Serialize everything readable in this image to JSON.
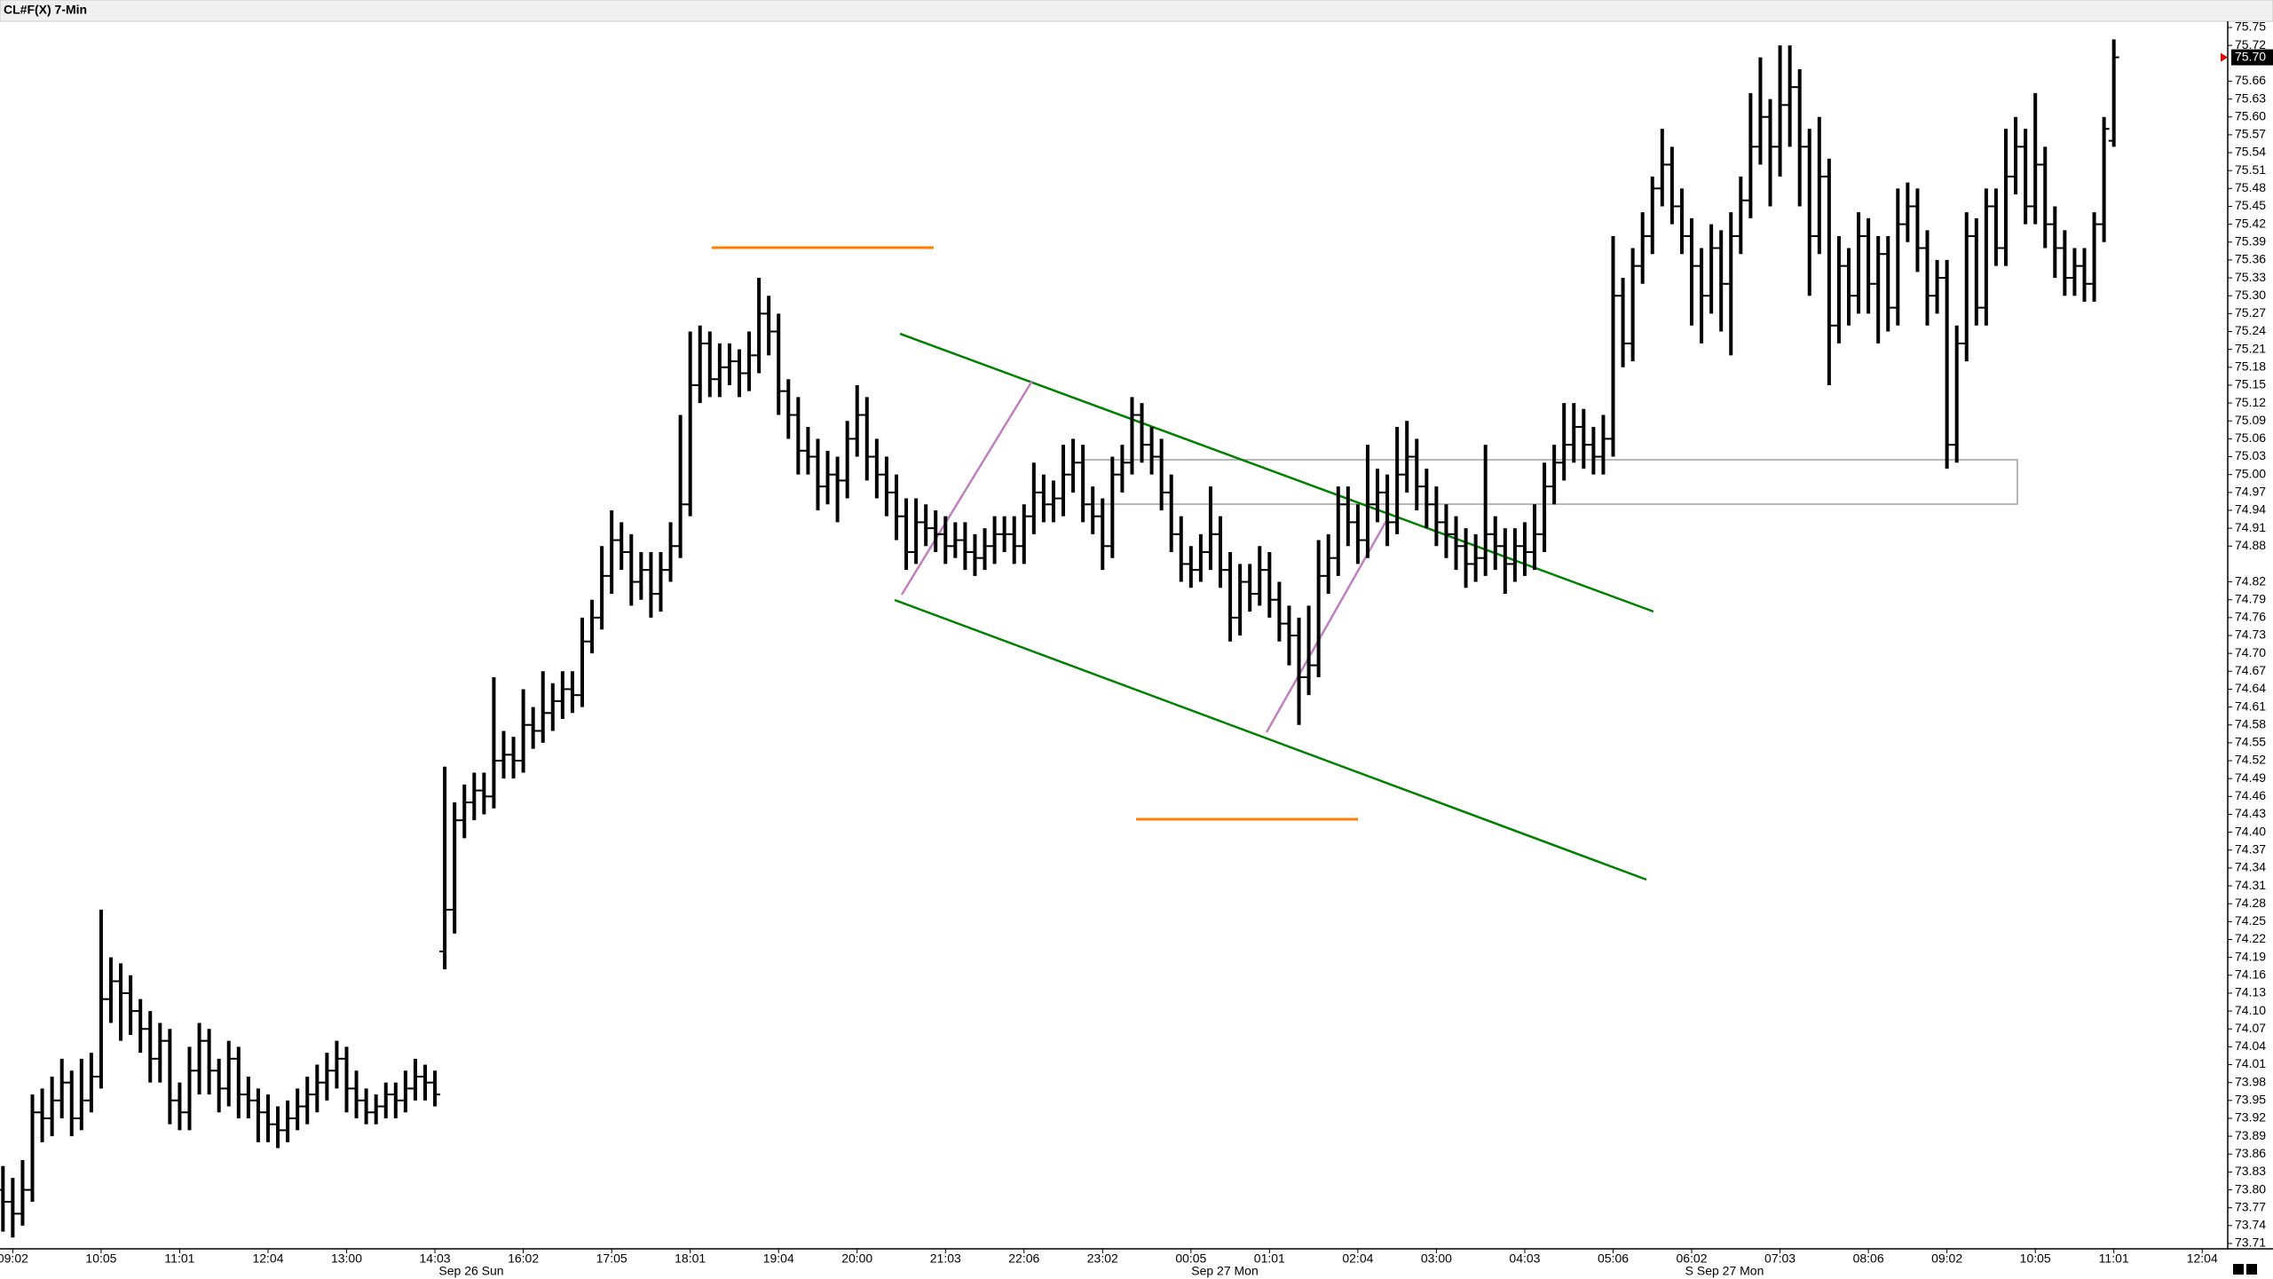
{
  "chart_data": {
    "type": "ohlc",
    "title": "CL#F(X) 7-Min",
    "color": "#000000",
    "xlim": [
      -0.3,
      226.6
    ],
    "ylim": [
      73.71,
      75.75
    ],
    "xticks": [
      {
        "value": 1,
        "label": "09:02"
      },
      {
        "value": 10,
        "label": "10:05"
      },
      {
        "value": 18,
        "label": "11:01"
      },
      {
        "value": 27,
        "label": "12:04"
      },
      {
        "value": 35,
        "label": "13:00"
      },
      {
        "value": 44,
        "label": "14:03"
      },
      {
        "value": 53,
        "label": "16:02"
      },
      {
        "value": 62,
        "label": "17:05"
      },
      {
        "value": 70,
        "label": "18:01"
      },
      {
        "value": 79,
        "label": "19:04"
      },
      {
        "value": 87,
        "label": "20:00"
      },
      {
        "value": 96,
        "label": "21:03"
      },
      {
        "value": 104,
        "label": "22:06"
      },
      {
        "value": 112,
        "label": "23:02"
      },
      {
        "value": 121,
        "label": "00:05"
      },
      {
        "value": 129,
        "label": "01:01"
      },
      {
        "value": 138,
        "label": "02:04"
      },
      {
        "value": 146,
        "label": "03:00"
      },
      {
        "value": 155,
        "label": "04:03"
      },
      {
        "value": 164,
        "label": "05:06"
      },
      {
        "value": 172,
        "label": "06:02"
      },
      {
        "value": 181,
        "label": "07:03"
      },
      {
        "value": 190,
        "label": "08:06"
      },
      {
        "value": 198,
        "label": "09:02"
      },
      {
        "value": 207,
        "label": "10:05"
      },
      {
        "value": 215,
        "label": "11:01"
      },
      {
        "value": 224,
        "label": "12:04"
      }
    ],
    "date_labels": [
      "Sep 26 Sun",
      "Sep 27 Mon",
      "S Sep 27 Mon"
    ],
    "yticks": [
      75.75,
      75.72,
      75.66,
      75.63,
      {
        "value": 75.6,
        "label": "75.60"
      },
      75.57,
      75.54,
      75.51,
      75.48,
      75.45,
      75.42,
      75.39,
      75.36,
      75.33,
      {
        "value": 75.3,
        "label": "75.30"
      },
      75.27,
      75.24,
      75.21,
      75.18,
      75.15,
      75.12,
      75.09,
      75.06,
      75.03,
      {
        "value": 75,
        "label": "75.00"
      },
      74.97,
      74.94,
      74.91,
      74.88,
      74.82,
      74.79,
      74.76,
      74.73,
      {
        "value": 74.7,
        "label": "74.70"
      },
      74.67,
      74.64,
      74.61,
      74.58,
      74.55,
      74.52,
      74.49,
      74.46,
      74.43,
      {
        "value": 74.4,
        "label": "74.40"
      },
      74.37,
      74.34,
      74.31,
      74.28,
      74.25,
      74.22,
      74.19,
      74.16,
      74.13,
      {
        "value": 74.1,
        "label": "74.10"
      },
      74.07,
      74.04,
      74.01,
      73.98,
      73.95,
      73.92,
      73.89,
      73.86,
      73.83,
      {
        "value": 73.8,
        "label": "73.80"
      },
      73.77,
      73.74,
      73.71
    ],
    "last_price": {
      "value": 75.7,
      "label": "75.70"
    },
    "ohlc": [
      [
        73.8,
        73.84,
        73.73,
        73.78
      ],
      [
        73.78,
        73.82,
        73.72,
        73.76
      ],
      [
        73.76,
        73.85,
        73.74,
        73.8
      ],
      [
        73.8,
        73.96,
        73.78,
        73.93
      ],
      [
        73.93,
        73.97,
        73.88,
        73.92
      ],
      [
        73.92,
        73.99,
        73.89,
        73.95
      ],
      [
        73.95,
        74.02,
        73.92,
        73.98
      ],
      [
        73.98,
        74.0,
        73.89,
        73.92
      ],
      [
        73.92,
        74.02,
        73.9,
        73.95
      ],
      [
        73.95,
        74.03,
        73.93,
        73.99
      ],
      [
        73.99,
        74.27,
        73.97,
        74.12
      ],
      [
        74.12,
        74.19,
        74.08,
        74.15
      ],
      [
        74.15,
        74.18,
        74.05,
        74.13
      ],
      [
        74.13,
        74.16,
        74.06,
        74.1
      ],
      [
        74.1,
        74.12,
        74.03,
        74.07
      ],
      [
        74.07,
        74.1,
        73.98,
        74.02
      ],
      [
        74.02,
        74.08,
        73.98,
        74.05
      ],
      [
        74.05,
        74.07,
        73.91,
        73.95
      ],
      [
        73.95,
        73.98,
        73.9,
        73.93
      ],
      [
        73.93,
        74.04,
        73.9,
        74.0
      ],
      [
        74.0,
        74.08,
        73.96,
        74.05
      ],
      [
        74.05,
        74.07,
        73.96,
        74.0
      ],
      [
        74.0,
        74.02,
        73.93,
        73.97
      ],
      [
        73.97,
        74.05,
        73.94,
        74.02
      ],
      [
        74.02,
        74.04,
        73.92,
        73.96
      ],
      [
        73.96,
        73.99,
        73.92,
        73.95
      ],
      [
        73.95,
        73.97,
        73.88,
        73.93
      ],
      [
        73.93,
        73.96,
        73.88,
        73.91
      ],
      [
        73.91,
        73.94,
        73.87,
        73.9
      ],
      [
        73.9,
        73.95,
        73.88,
        73.92
      ],
      [
        73.92,
        73.97,
        73.9,
        73.94
      ],
      [
        73.94,
        73.99,
        73.91,
        73.96
      ],
      [
        73.96,
        74.01,
        73.93,
        73.98
      ],
      [
        73.98,
        74.03,
        73.95,
        74.0
      ],
      [
        74.0,
        74.05,
        73.97,
        74.02
      ],
      [
        74.02,
        74.04,
        73.93,
        73.97
      ],
      [
        73.97,
        74.0,
        73.92,
        73.95
      ],
      [
        73.95,
        73.97,
        73.91,
        73.93
      ],
      [
        73.93,
        73.96,
        73.91,
        73.94
      ],
      [
        73.94,
        73.98,
        73.92,
        73.96
      ],
      [
        73.96,
        73.98,
        73.92,
        73.95
      ],
      [
        73.95,
        74.0,
        73.93,
        73.97
      ],
      [
        73.97,
        74.02,
        73.95,
        73.99
      ],
      [
        73.99,
        74.01,
        73.95,
        73.98
      ],
      [
        73.98,
        74.0,
        73.94,
        73.96
      ],
      [
        74.2,
        74.51,
        74.17,
        74.27
      ],
      [
        74.27,
        74.45,
        74.23,
        74.42
      ],
      [
        74.42,
        74.48,
        74.39,
        74.45
      ],
      [
        74.45,
        74.5,
        74.42,
        74.47
      ],
      [
        74.47,
        74.5,
        74.43,
        74.46
      ],
      [
        74.46,
        74.66,
        74.44,
        74.52
      ],
      [
        74.52,
        74.57,
        74.49,
        74.53
      ],
      [
        74.53,
        74.56,
        74.49,
        74.52
      ],
      [
        74.52,
        74.64,
        74.5,
        74.58
      ],
      [
        74.58,
        74.61,
        74.54,
        74.57
      ],
      [
        74.57,
        74.67,
        74.55,
        74.6
      ],
      [
        74.6,
        74.65,
        74.57,
        74.62
      ],
      [
        74.62,
        74.67,
        74.59,
        74.64
      ],
      [
        74.64,
        74.67,
        74.6,
        74.63
      ],
      [
        74.63,
        74.76,
        74.61,
        74.72
      ],
      [
        74.72,
        74.79,
        74.7,
        74.76
      ],
      [
        74.76,
        74.88,
        74.74,
        74.83
      ],
      [
        74.83,
        74.94,
        74.8,
        74.89
      ],
      [
        74.89,
        74.92,
        74.84,
        74.87
      ],
      [
        74.87,
        74.9,
        74.78,
        74.82
      ],
      [
        74.82,
        74.87,
        74.79,
        74.84
      ],
      [
        74.84,
        74.87,
        74.76,
        74.8
      ],
      [
        74.8,
        74.87,
        74.77,
        74.84
      ],
      [
        74.84,
        74.92,
        74.82,
        74.88
      ],
      [
        74.88,
        75.1,
        74.86,
        74.95
      ],
      [
        74.95,
        75.24,
        74.93,
        75.15
      ],
      [
        75.15,
        75.25,
        75.12,
        75.22
      ],
      [
        75.22,
        75.24,
        75.13,
        75.16
      ],
      [
        75.16,
        75.22,
        75.13,
        75.18
      ],
      [
        75.18,
        75.22,
        75.15,
        75.19
      ],
      [
        75.19,
        75.21,
        75.13,
        75.17
      ],
      [
        75.17,
        75.24,
        75.14,
        75.2
      ],
      [
        75.2,
        75.33,
        75.17,
        75.27
      ],
      [
        75.27,
        75.3,
        75.2,
        75.24
      ],
      [
        75.24,
        75.27,
        75.1,
        75.14
      ],
      [
        75.14,
        75.16,
        75.06,
        75.1
      ],
      [
        75.1,
        75.13,
        75.0,
        75.04
      ],
      [
        75.04,
        75.08,
        75.0,
        75.03
      ],
      [
        75.03,
        75.06,
        74.94,
        74.98
      ],
      [
        74.98,
        75.04,
        74.95,
        75.0
      ],
      [
        75.0,
        75.03,
        74.92,
        74.99
      ],
      [
        74.99,
        75.09,
        74.96,
        75.06
      ],
      [
        75.06,
        75.15,
        75.03,
        75.1
      ],
      [
        75.1,
        75.13,
        74.99,
        75.03
      ],
      [
        75.03,
        75.06,
        74.96,
        75.0
      ],
      [
        75.0,
        75.03,
        74.93,
        74.97
      ],
      [
        74.97,
        75.0,
        74.89,
        74.93
      ],
      [
        74.93,
        74.96,
        74.84,
        74.87
      ],
      [
        74.87,
        74.96,
        74.85,
        74.92
      ],
      [
        74.92,
        74.95,
        74.88,
        74.91
      ],
      [
        74.91,
        74.94,
        74.87,
        74.9
      ],
      [
        74.9,
        74.93,
        74.85,
        74.88
      ],
      [
        74.88,
        74.92,
        74.86,
        74.89
      ],
      [
        74.89,
        74.92,
        74.84,
        74.87
      ],
      [
        74.87,
        74.9,
        74.83,
        74.86
      ],
      [
        74.86,
        74.91,
        74.84,
        74.88
      ],
      [
        74.88,
        74.93,
        74.85,
        74.9
      ],
      [
        74.9,
        74.93,
        74.87,
        74.9
      ],
      [
        74.9,
        74.93,
        74.85,
        74.88
      ],
      [
        74.88,
        74.95,
        74.85,
        74.93
      ],
      [
        74.93,
        75.02,
        74.9,
        74.97
      ],
      [
        74.97,
        75.0,
        74.92,
        74.95
      ],
      [
        74.95,
        74.99,
        74.92,
        74.96
      ],
      [
        74.96,
        75.05,
        74.93,
        75.0
      ],
      [
        75.0,
        75.06,
        74.97,
        75.02
      ],
      [
        75.02,
        75.05,
        74.92,
        74.95
      ],
      [
        74.95,
        74.98,
        74.9,
        74.93
      ],
      [
        74.93,
        74.96,
        74.84,
        74.88
      ],
      [
        74.88,
        75.03,
        74.86,
        75.0
      ],
      [
        75.0,
        75.05,
        74.97,
        75.02
      ],
      [
        75.02,
        75.13,
        75.0,
        75.1
      ],
      [
        75.1,
        75.12,
        75.02,
        75.05
      ],
      [
        75.05,
        75.08,
        75.0,
        75.03
      ],
      [
        75.03,
        75.06,
        74.94,
        74.97
      ],
      [
        74.97,
        75.0,
        74.87,
        74.9
      ],
      [
        74.9,
        74.93,
        74.82,
        74.85
      ],
      [
        74.85,
        74.88,
        74.81,
        74.84
      ],
      [
        74.84,
        74.9,
        74.82,
        74.87
      ],
      [
        74.87,
        74.98,
        74.84,
        74.9
      ],
      [
        74.9,
        74.93,
        74.81,
        74.84
      ],
      [
        74.84,
        74.87,
        74.72,
        74.76
      ],
      [
        74.76,
        74.85,
        74.73,
        74.82
      ],
      [
        74.82,
        74.85,
        74.77,
        74.8
      ],
      [
        74.8,
        74.88,
        74.78,
        74.84
      ],
      [
        74.84,
        74.87,
        74.76,
        74.79
      ],
      [
        74.79,
        74.82,
        74.72,
        74.75
      ],
      [
        74.75,
        74.78,
        74.68,
        74.73
      ],
      [
        74.73,
        74.76,
        74.58,
        74.66
      ],
      [
        74.66,
        74.78,
        74.63,
        74.68
      ],
      [
        74.68,
        74.89,
        74.66,
        74.83
      ],
      [
        74.83,
        74.9,
        74.8,
        74.86
      ],
      [
        74.86,
        74.98,
        74.83,
        74.95
      ],
      [
        74.95,
        74.98,
        74.88,
        74.92
      ],
      [
        74.92,
        74.95,
        74.85,
        74.89
      ],
      [
        74.89,
        75.05,
        74.86,
        74.95
      ],
      [
        74.95,
        75.01,
        74.92,
        74.97
      ],
      [
        74.97,
        75.0,
        74.88,
        74.92
      ],
      [
        74.92,
        75.08,
        74.9,
        75.0
      ],
      [
        75.0,
        75.09,
        74.97,
        75.03
      ],
      [
        75.03,
        75.06,
        74.94,
        74.98
      ],
      [
        74.98,
        75.01,
        74.91,
        74.95
      ],
      [
        74.95,
        74.98,
        74.88,
        74.92
      ],
      [
        74.92,
        74.95,
        74.86,
        74.9
      ],
      [
        74.9,
        74.93,
        74.84,
        74.88
      ],
      [
        74.88,
        74.91,
        74.81,
        74.85
      ],
      [
        74.85,
        74.9,
        74.82,
        74.86
      ],
      [
        74.86,
        75.05,
        74.83,
        74.9
      ],
      [
        74.9,
        74.93,
        74.84,
        74.88
      ],
      [
        74.88,
        74.91,
        74.8,
        74.85
      ],
      [
        74.85,
        74.91,
        74.82,
        74.88
      ],
      [
        74.88,
        74.92,
        74.83,
        74.87
      ],
      [
        74.87,
        74.95,
        74.84,
        74.9
      ],
      [
        74.9,
        75.02,
        74.87,
        74.98
      ],
      [
        74.98,
        75.05,
        74.95,
        75.02
      ],
      [
        75.02,
        75.12,
        74.99,
        75.05
      ],
      [
        75.05,
        75.12,
        75.02,
        75.08
      ],
      [
        75.08,
        75.11,
        75.01,
        75.05
      ],
      [
        75.05,
        75.08,
        75.0,
        75.03
      ],
      [
        75.03,
        75.1,
        75.0,
        75.06
      ],
      [
        75.06,
        75.4,
        75.03,
        75.3
      ],
      [
        75.3,
        75.33,
        75.18,
        75.22
      ],
      [
        75.22,
        75.38,
        75.19,
        75.35
      ],
      [
        75.35,
        75.44,
        75.32,
        75.4
      ],
      [
        75.4,
        75.5,
        75.37,
        75.48
      ],
      [
        75.48,
        75.58,
        75.45,
        75.52
      ],
      [
        75.52,
        75.55,
        75.42,
        75.45
      ],
      [
        75.45,
        75.48,
        75.37,
        75.4
      ],
      [
        75.4,
        75.43,
        75.25,
        75.35
      ],
      [
        75.35,
        75.38,
        75.22,
        75.3
      ],
      [
        75.3,
        75.42,
        75.27,
        75.38
      ],
      [
        75.38,
        75.41,
        75.24,
        75.32
      ],
      [
        75.32,
        75.44,
        75.2,
        75.4
      ],
      [
        75.4,
        75.5,
        75.37,
        75.46
      ],
      [
        75.46,
        75.64,
        75.43,
        75.55
      ],
      [
        75.55,
        75.7,
        75.52,
        75.6
      ],
      [
        75.6,
        75.63,
        75.45,
        75.55
      ],
      [
        75.55,
        75.72,
        75.5,
        75.62
      ],
      [
        75.62,
        75.72,
        75.55,
        75.65
      ],
      [
        75.65,
        75.68,
        75.45,
        75.55
      ],
      [
        75.55,
        75.58,
        75.3,
        75.4
      ],
      [
        75.4,
        75.6,
        75.37,
        75.5
      ],
      [
        75.5,
        75.53,
        75.15,
        75.25
      ],
      [
        75.25,
        75.4,
        75.22,
        75.35
      ],
      [
        75.35,
        75.38,
        75.25,
        75.3
      ],
      [
        75.3,
        75.44,
        75.27,
        75.4
      ],
      [
        75.4,
        75.43,
        75.27,
        75.32
      ],
      [
        75.32,
        75.4,
        75.22,
        75.37
      ],
      [
        75.37,
        75.4,
        75.24,
        75.28
      ],
      [
        75.28,
        75.48,
        75.25,
        75.42
      ],
      [
        75.42,
        75.49,
        75.39,
        75.45
      ],
      [
        75.45,
        75.48,
        75.34,
        75.38
      ],
      [
        75.38,
        75.41,
        75.25,
        75.3
      ],
      [
        75.3,
        75.36,
        75.27,
        75.33
      ],
      [
        75.33,
        75.36,
        75.01,
        75.05
      ],
      [
        75.05,
        75.25,
        75.02,
        75.22
      ],
      [
        75.22,
        75.44,
        75.19,
        75.4
      ],
      [
        75.4,
        75.43,
        75.25,
        75.28
      ],
      [
        75.28,
        75.48,
        75.25,
        75.45
      ],
      [
        75.45,
        75.48,
        75.35,
        75.38
      ],
      [
        75.38,
        75.58,
        75.35,
        75.5
      ],
      [
        75.5,
        75.6,
        75.47,
        75.55
      ],
      [
        75.55,
        75.58,
        75.42,
        75.45
      ],
      [
        75.45,
        75.64,
        75.42,
        75.52
      ],
      [
        75.52,
        75.55,
        75.38,
        75.42
      ],
      [
        75.42,
        75.45,
        75.33,
        75.38
      ],
      [
        75.38,
        75.41,
        75.3,
        75.33
      ],
      [
        75.33,
        75.38,
        75.3,
        75.35
      ],
      [
        75.35,
        75.38,
        75.29,
        75.32
      ],
      [
        75.32,
        75.44,
        75.29,
        75.42
      ],
      [
        75.42,
        75.6,
        75.39,
        75.58
      ],
      [
        75.56,
        75.73,
        75.55,
        75.7
      ]
    ]
  }
}
